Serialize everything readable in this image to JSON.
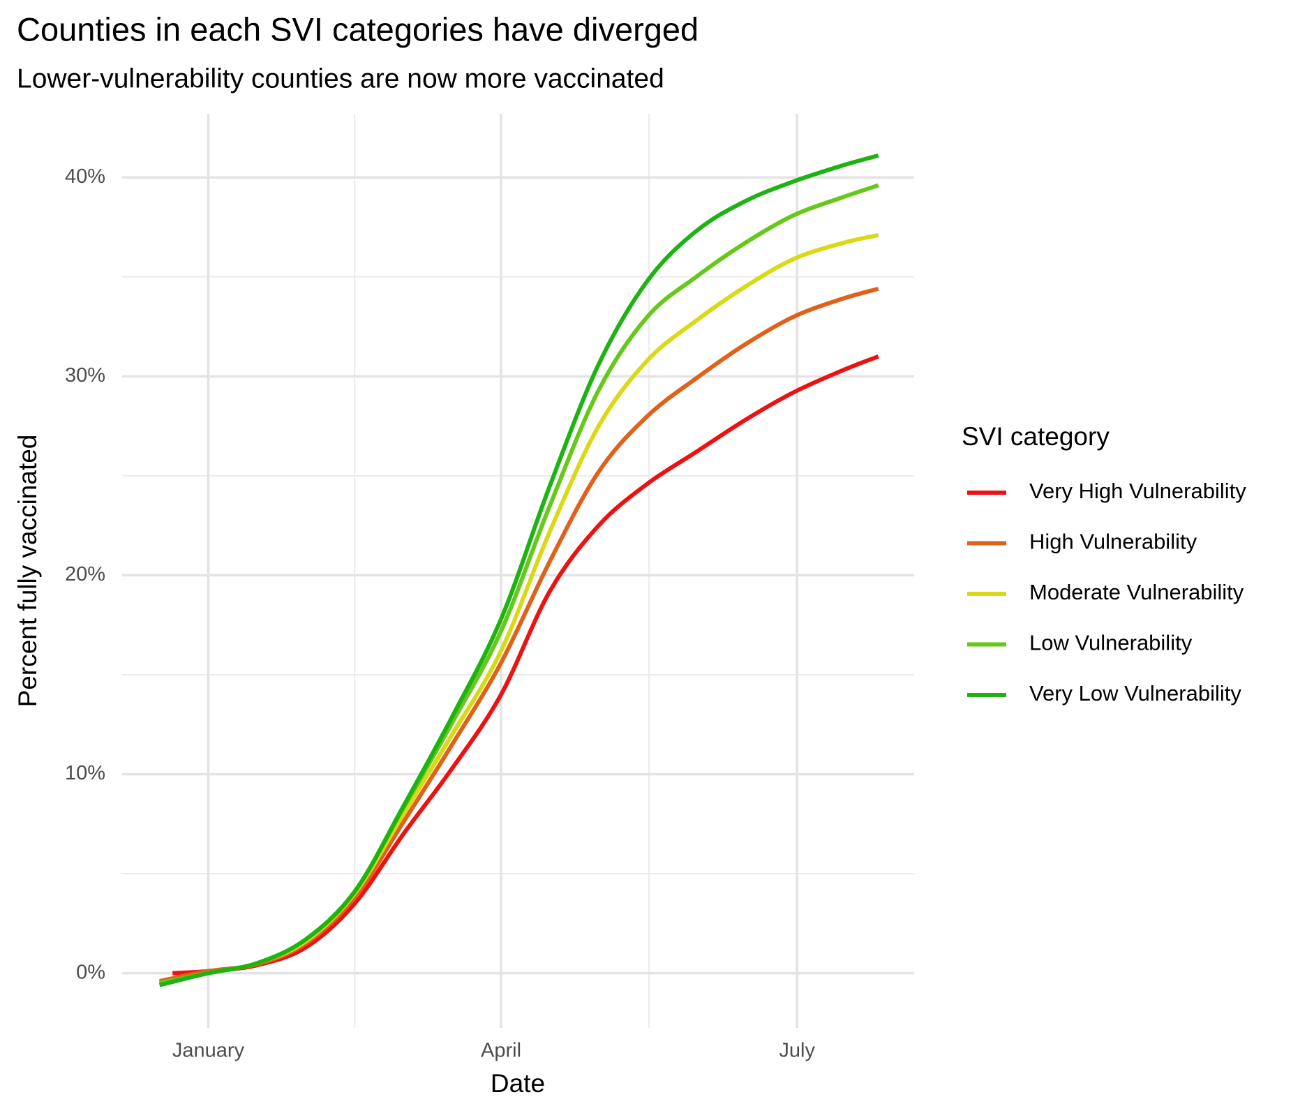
{
  "chart_data": {
    "type": "line",
    "title": "Counties in each SVI categories have diverged",
    "subtitle": "Lower-vulnerability counties are now more vaccinated",
    "x_label": "Date",
    "y_label": "Percent fully vaccinated",
    "legend_title": "SVI category",
    "legend_position": "right",
    "xlim": [
      -26.5,
      217
    ],
    "ylim": [
      -2.75,
      43.2
    ],
    "xticks": [
      {
        "value": 0,
        "label": "January"
      },
      {
        "value": 90,
        "label": "April"
      },
      {
        "value": 181,
        "label": "July"
      }
    ],
    "xminorticks": [
      45,
      135.5
    ],
    "yticks": [
      {
        "value": 0,
        "label": "0%"
      },
      {
        "value": 10,
        "label": "10%"
      },
      {
        "value": 20,
        "label": "20%"
      },
      {
        "value": 30,
        "label": "30%"
      },
      {
        "value": 40,
        "label": "40%"
      }
    ],
    "yminorticks": [
      5,
      15,
      25,
      35
    ],
    "grid": true,
    "series": [
      {
        "name": "Very High Vulnerability",
        "color": "#ee1111",
        "x": [
          -11,
          0,
          15,
          30,
          45,
          60,
          75,
          90,
          105,
          120,
          135,
          150,
          165,
          180,
          195,
          206
        ],
        "values": [
          0,
          0.1,
          0.4,
          1.3,
          3.5,
          7,
          10.3,
          14,
          19.2,
          22.5,
          24.6,
          26.2,
          27.8,
          29.2,
          30.3,
          31.0
        ]
      },
      {
        "name": "High Vulnerability",
        "color": "#e0621a",
        "x": [
          -15,
          0,
          15,
          30,
          45,
          60,
          75,
          90,
          105,
          120,
          135,
          150,
          165,
          180,
          195,
          206
        ],
        "values": [
          -0.4,
          0.1,
          0.45,
          1.5,
          3.8,
          7.6,
          11.5,
          15.6,
          20.7,
          25.2,
          28.0,
          29.9,
          31.6,
          33.0,
          33.9,
          34.4
        ]
      },
      {
        "name": "Moderate Vulnerability",
        "color": "#d9d916",
        "x": [
          -15,
          0,
          15,
          30,
          45,
          60,
          75,
          90,
          105,
          120,
          135,
          150,
          165,
          180,
          195,
          206
        ],
        "values": [
          -0.5,
          0,
          0.5,
          1.6,
          4,
          8,
          12,
          16.2,
          22.2,
          27.5,
          30.8,
          32.8,
          34.5,
          35.9,
          36.7,
          37.1
        ]
      },
      {
        "name": "Low Vulnerability",
        "color": "#66c818",
        "x": [
          -15,
          0,
          15,
          30,
          45,
          60,
          75,
          90,
          105,
          120,
          135,
          150,
          165,
          180,
          195,
          206
        ],
        "values": [
          -0.5,
          0,
          0.5,
          1.7,
          4.1,
          8.3,
          12.6,
          17.2,
          23.5,
          29.3,
          33.0,
          35.0,
          36.7,
          38.1,
          39.0,
          39.6
        ]
      },
      {
        "name": "Very Low Vulnerability",
        "color": "#1db312",
        "x": [
          -15,
          0,
          15,
          30,
          45,
          60,
          75,
          90,
          105,
          120,
          135,
          150,
          165,
          180,
          195,
          206
        ],
        "values": [
          -0.6,
          0,
          0.5,
          1.7,
          4.1,
          8.4,
          12.9,
          17.8,
          24.5,
          30.6,
          34.8,
          37.3,
          38.8,
          39.8,
          40.6,
          41.1
        ]
      }
    ]
  }
}
